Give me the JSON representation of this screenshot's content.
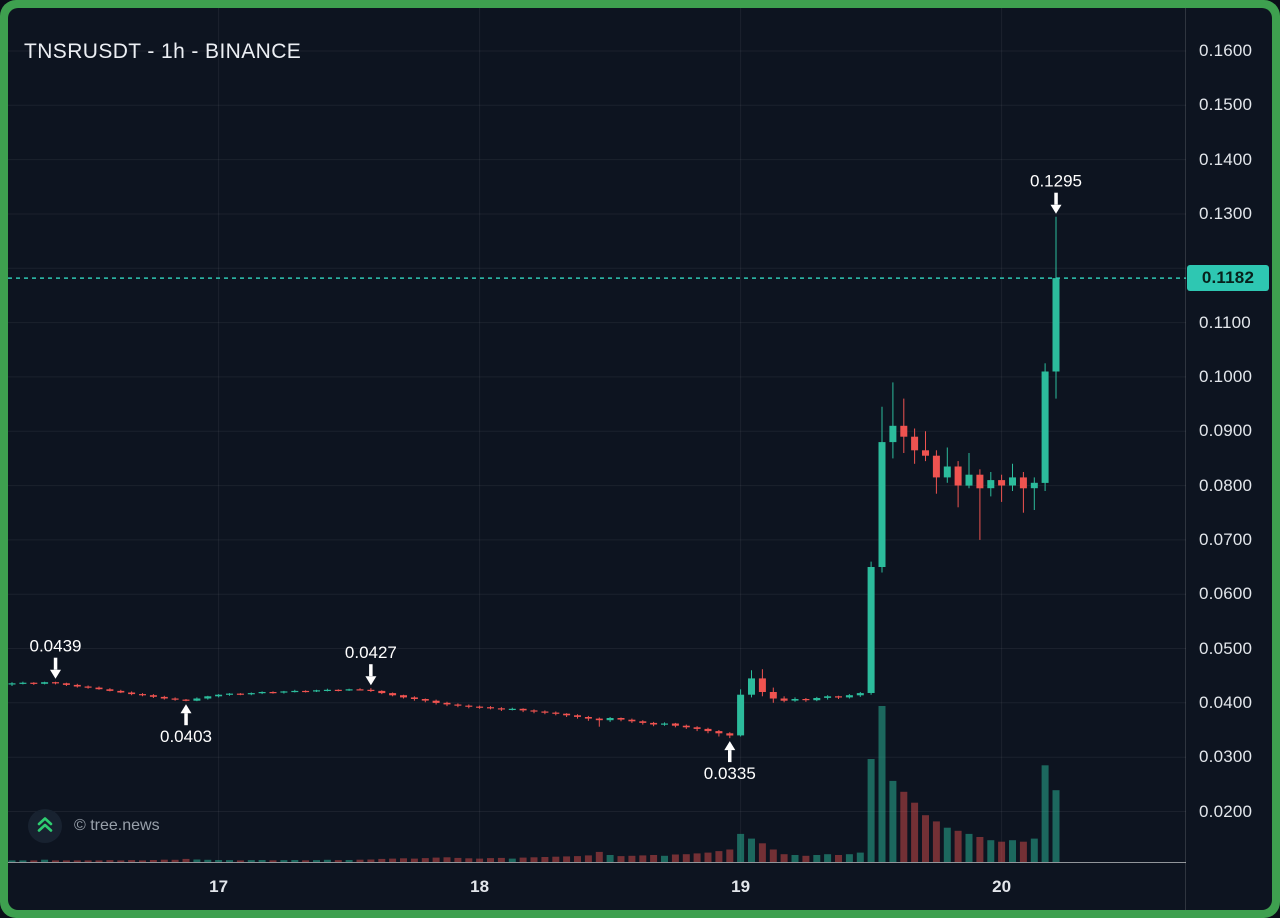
{
  "header": {
    "title": "TNSRUSDT - 1h - BINANCE"
  },
  "watermark": {
    "icon": "chevrons-up-icon",
    "text": "© tree.news"
  },
  "colors": {
    "frame_green": "#3ea04f",
    "background": "#0d1420",
    "grid": "rgba(255,255,255,0.06)",
    "axis_text": "#e2e6eb",
    "baseline": "rgba(255,255,255,0.55)",
    "up": "#2cbc9c",
    "down": "#ef5350",
    "vol_up": "rgba(44,188,156,0.5)",
    "vol_down": "rgba(239,83,80,0.45)",
    "price_line": "#2ec7b2",
    "price_label_bg": "#2ec7b2",
    "price_label_text": "#07211c",
    "marker": "#ffffff",
    "logo_green": "#2ecc71"
  },
  "chart_data": {
    "type": "candlestick",
    "title": "TNSRUSDT - 1h - BINANCE",
    "symbol": "TNSRUSDT",
    "interval": "1h",
    "exchange": "BINANCE",
    "grid": true,
    "x_axis": {
      "tick_labels": [
        "17",
        "18",
        "19",
        "20"
      ],
      "tick_candle_indices": [
        19,
        43,
        67,
        91
      ]
    },
    "y_axis": {
      "side": "right",
      "visible_labels": [
        "0.1600",
        "0.1500",
        "0.1400",
        "0.1300",
        "0.1100",
        "0.1000",
        "0.0900",
        "0.0800",
        "0.0700",
        "0.0600",
        "0.0500",
        "0.0400",
        "0.0300",
        "0.0200"
      ],
      "gridline_values": [
        0.02,
        0.03,
        0.04,
        0.05,
        0.06,
        0.07,
        0.08,
        0.09,
        0.1,
        0.11,
        0.12,
        0.13,
        0.14,
        0.15,
        0.16
      ],
      "visible_range": [
        0.0165,
        0.1694
      ]
    },
    "last_price": {
      "value": 0.1182,
      "label": "0.1182"
    },
    "marked_points": [
      {
        "label": "0.0439",
        "price": 0.0439,
        "candle_index": 4,
        "arrow": "down"
      },
      {
        "label": "0.0403",
        "price": 0.0403,
        "candle_index": 16,
        "arrow": "up"
      },
      {
        "label": "0.0427",
        "price": 0.0427,
        "candle_index": 33,
        "arrow": "down"
      },
      {
        "label": "0.0335",
        "price": 0.0335,
        "candle_index": 66,
        "arrow": "up"
      },
      {
        "label": "0.1295",
        "price": 0.1295,
        "candle_index": 96,
        "arrow": "down"
      }
    ],
    "volume_max_bar": 100,
    "candles_ohlcv": [
      [
        0.0434,
        0.0438,
        0.0431,
        0.0436,
        1
      ],
      [
        0.0436,
        0.0439,
        0.0434,
        0.0437,
        1
      ],
      [
        0.0437,
        0.0438,
        0.0433,
        0.0435,
        1
      ],
      [
        0.0435,
        0.0439,
        0.0434,
        0.0438,
        1.5
      ],
      [
        0.0438,
        0.0439,
        0.0434,
        0.0436,
        1
      ],
      [
        0.0436,
        0.0437,
        0.0431,
        0.0433,
        1
      ],
      [
        0.0433,
        0.0435,
        0.0428,
        0.043,
        1
      ],
      [
        0.043,
        0.0432,
        0.0426,
        0.0428,
        1
      ],
      [
        0.0428,
        0.043,
        0.0424,
        0.0425,
        1
      ],
      [
        0.0425,
        0.0427,
        0.0421,
        0.0422,
        1.2
      ],
      [
        0.0422,
        0.0424,
        0.0418,
        0.0419,
        1
      ],
      [
        0.0419,
        0.0421,
        0.0414,
        0.0416,
        1.2
      ],
      [
        0.0416,
        0.0418,
        0.0412,
        0.0414,
        1
      ],
      [
        0.0414,
        0.0416,
        0.0409,
        0.0411,
        1.3
      ],
      [
        0.0411,
        0.0413,
        0.0406,
        0.0408,
        1.5
      ],
      [
        0.0408,
        0.041,
        0.0404,
        0.0406,
        1.4
      ],
      [
        0.0406,
        0.0407,
        0.0403,
        0.0404,
        2
      ],
      [
        0.0404,
        0.041,
        0.0403,
        0.0408,
        1.6
      ],
      [
        0.0408,
        0.0413,
        0.0406,
        0.0412,
        1.4
      ],
      [
        0.0412,
        0.0416,
        0.041,
        0.0415,
        1.3
      ],
      [
        0.0415,
        0.0418,
        0.0413,
        0.0417,
        1.2
      ],
      [
        0.0417,
        0.0418,
        0.0414,
        0.0416,
        1
      ],
      [
        0.0416,
        0.0419,
        0.0414,
        0.0418,
        1.2
      ],
      [
        0.0418,
        0.0421,
        0.0416,
        0.042,
        1.3
      ],
      [
        0.042,
        0.0421,
        0.0417,
        0.0419,
        1.1
      ],
      [
        0.0419,
        0.0422,
        0.0417,
        0.0421,
        1.2
      ],
      [
        0.0421,
        0.0424,
        0.0419,
        0.0422,
        1.3
      ],
      [
        0.0422,
        0.0423,
        0.0419,
        0.0421,
        1.1
      ],
      [
        0.0421,
        0.0424,
        0.042,
        0.0423,
        1.2
      ],
      [
        0.0423,
        0.0426,
        0.0421,
        0.0424,
        1.4
      ],
      [
        0.0424,
        0.0425,
        0.0421,
        0.0423,
        1.2
      ],
      [
        0.0423,
        0.0426,
        0.0422,
        0.0425,
        1.3
      ],
      [
        0.0425,
        0.0427,
        0.0423,
        0.0424,
        1.5
      ],
      [
        0.0424,
        0.0427,
        0.042,
        0.0422,
        1.6
      ],
      [
        0.0422,
        0.0423,
        0.0416,
        0.0418,
        2
      ],
      [
        0.0418,
        0.0419,
        0.0412,
        0.0414,
        2.2
      ],
      [
        0.0414,
        0.0415,
        0.0408,
        0.041,
        2.4
      ],
      [
        0.041,
        0.0412,
        0.0404,
        0.0407,
        2.2
      ],
      [
        0.0407,
        0.0408,
        0.0401,
        0.0404,
        2.5
      ],
      [
        0.0404,
        0.0406,
        0.0397,
        0.04,
        2.8
      ],
      [
        0.04,
        0.0402,
        0.0394,
        0.0397,
        3
      ],
      [
        0.0397,
        0.0399,
        0.0392,
        0.0395,
        2.6
      ],
      [
        0.0395,
        0.0397,
        0.039,
        0.0393,
        2.4
      ],
      [
        0.0393,
        0.0395,
        0.0389,
        0.0392,
        2.2
      ],
      [
        0.0392,
        0.0394,
        0.0388,
        0.039,
        2.5
      ],
      [
        0.039,
        0.0392,
        0.0385,
        0.0388,
        2.6
      ],
      [
        0.0388,
        0.0391,
        0.0386,
        0.0389,
        2.2
      ],
      [
        0.0389,
        0.039,
        0.0383,
        0.0386,
        2.8
      ],
      [
        0.0386,
        0.0388,
        0.0381,
        0.0384,
        3
      ],
      [
        0.0384,
        0.0386,
        0.0379,
        0.0382,
        3.2
      ],
      [
        0.0382,
        0.0384,
        0.0377,
        0.038,
        3.4
      ],
      [
        0.038,
        0.0381,
        0.0374,
        0.0377,
        3.6
      ],
      [
        0.0377,
        0.0379,
        0.0371,
        0.0374,
        3.8
      ],
      [
        0.0374,
        0.0376,
        0.0367,
        0.0371,
        4.2
      ],
      [
        0.0371,
        0.0373,
        0.0356,
        0.0368,
        6.5
      ],
      [
        0.0368,
        0.0374,
        0.0365,
        0.0372,
        4.5
      ],
      [
        0.0372,
        0.0373,
        0.0366,
        0.0369,
        3.8
      ],
      [
        0.0369,
        0.0371,
        0.0363,
        0.0366,
        4
      ],
      [
        0.0366,
        0.0368,
        0.036,
        0.0363,
        4.2
      ],
      [
        0.0363,
        0.0365,
        0.0357,
        0.036,
        4.5
      ],
      [
        0.036,
        0.0364,
        0.0358,
        0.0362,
        4
      ],
      [
        0.0362,
        0.0363,
        0.0355,
        0.0358,
        4.8
      ],
      [
        0.0358,
        0.036,
        0.0352,
        0.0355,
        5
      ],
      [
        0.0355,
        0.0357,
        0.0348,
        0.0352,
        5.5
      ],
      [
        0.0352,
        0.0354,
        0.0344,
        0.0348,
        6
      ],
      [
        0.0348,
        0.035,
        0.0338,
        0.0344,
        7
      ],
      [
        0.0344,
        0.0346,
        0.0335,
        0.034,
        8
      ],
      [
        0.034,
        0.0425,
        0.0338,
        0.0415,
        18
      ],
      [
        0.0415,
        0.046,
        0.041,
        0.0445,
        15
      ],
      [
        0.0445,
        0.0462,
        0.0412,
        0.042,
        12
      ],
      [
        0.042,
        0.0428,
        0.04,
        0.0408,
        8
      ],
      [
        0.0408,
        0.0412,
        0.0401,
        0.0404,
        5
      ],
      [
        0.0404,
        0.041,
        0.0402,
        0.0407,
        4.5
      ],
      [
        0.0407,
        0.0409,
        0.0402,
        0.0405,
        4
      ],
      [
        0.0405,
        0.0411,
        0.0403,
        0.0409,
        4.5
      ],
      [
        0.0409,
        0.0414,
        0.0406,
        0.0412,
        5
      ],
      [
        0.0412,
        0.0413,
        0.0407,
        0.041,
        4.5
      ],
      [
        0.041,
        0.0416,
        0.0408,
        0.0414,
        5
      ],
      [
        0.0414,
        0.042,
        0.0411,
        0.0418,
        6
      ],
      [
        0.0418,
        0.066,
        0.0415,
        0.065,
        66
      ],
      [
        0.065,
        0.0945,
        0.064,
        0.088,
        100
      ],
      [
        0.088,
        0.099,
        0.085,
        0.091,
        52
      ],
      [
        0.091,
        0.096,
        0.086,
        0.089,
        45
      ],
      [
        0.089,
        0.0905,
        0.084,
        0.0865,
        38
      ],
      [
        0.0865,
        0.09,
        0.0845,
        0.0855,
        30
      ],
      [
        0.0855,
        0.0865,
        0.0785,
        0.0815,
        26
      ],
      [
        0.0815,
        0.087,
        0.0805,
        0.0835,
        22
      ],
      [
        0.0835,
        0.0845,
        0.076,
        0.08,
        20
      ],
      [
        0.08,
        0.086,
        0.0795,
        0.082,
        18
      ],
      [
        0.082,
        0.083,
        0.07,
        0.0795,
        16
      ],
      [
        0.0795,
        0.0825,
        0.078,
        0.081,
        14
      ],
      [
        0.081,
        0.082,
        0.077,
        0.08,
        13
      ],
      [
        0.08,
        0.084,
        0.079,
        0.0815,
        14
      ],
      [
        0.0815,
        0.0825,
        0.075,
        0.0795,
        13
      ],
      [
        0.0795,
        0.0815,
        0.0755,
        0.0805,
        15
      ],
      [
        0.0805,
        0.1025,
        0.079,
        0.101,
        62
      ],
      [
        0.101,
        0.1295,
        0.096,
        0.1182,
        46
      ]
    ]
  }
}
